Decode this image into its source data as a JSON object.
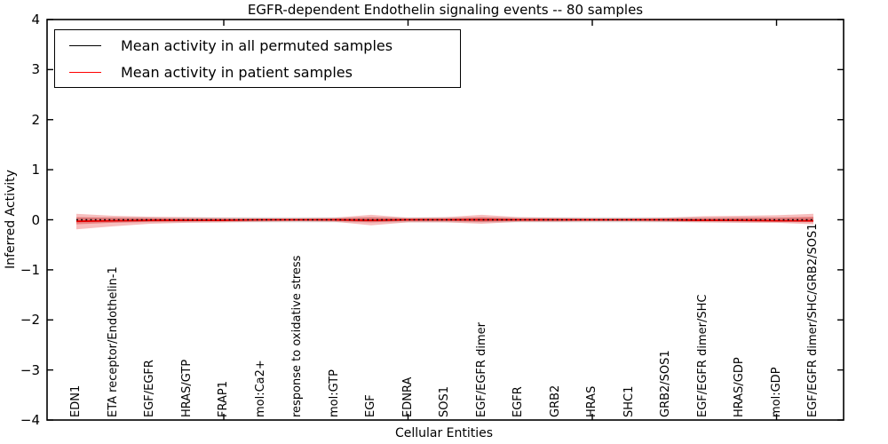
{
  "title": "EGFR-dependent Endothelin signaling events -- 80 samples",
  "legend": {
    "items": [
      {
        "label": "Mean activity in all permuted samples",
        "color": "#000000"
      },
      {
        "label": "Mean activity in patient samples",
        "color": "#ff0000"
      }
    ]
  },
  "chart_data": {
    "type": "line",
    "title": "EGFR-dependent Endothelin signaling events -- 80 samples",
    "xlabel": "Cellular Entities",
    "ylabel": "Inferred Activity",
    "ylim": [
      -4,
      4
    ],
    "yticks": [
      -4,
      -3,
      -2,
      -1,
      0,
      1,
      2,
      3,
      4
    ],
    "ytick_labels": [
      "−4",
      "−3",
      "−2",
      "−1",
      "0",
      "1",
      "2",
      "3",
      "4"
    ],
    "xtick_positions": [
      4,
      9,
      14,
      19
    ],
    "grid": false,
    "legend_position": "upper left",
    "categories": [
      "EDN1",
      "ETA receptor/Endothelin-1",
      "EGF/EGFR",
      "HRAS/GTP",
      "FRAP1",
      "mol:Ca2+",
      "response to oxidative stress",
      "mol:GTP",
      "EGF",
      "EDNRA",
      "SOS1",
      "EGF/EGFR dimer",
      "EGFR",
      "GRB2",
      "HRAS",
      "SHC1",
      "GRB2/SOS1",
      "EGF/EGFR dimer/SHC",
      "HRAS/GDP",
      "mol:GDP",
      "EGF/EGFR dimer/SHC/GRB2/SOS1"
    ],
    "series": [
      {
        "name": "Mean activity in all permuted samples",
        "color": "#000000",
        "style": "dashed",
        "values": [
          0,
          0,
          0,
          0,
          0,
          0,
          0,
          0,
          0,
          0,
          0,
          0,
          0,
          0,
          0,
          0,
          0,
          0,
          0,
          0,
          0
        ]
      },
      {
        "name": "Mean activity in patient samples",
        "color": "#e60000",
        "style": "solid",
        "values": [
          -0.03,
          -0.02,
          -0.01,
          -0.01,
          -0.01,
          0,
          0,
          0,
          -0.01,
          0,
          0,
          0,
          0,
          0,
          0,
          0,
          0,
          -0.01,
          -0.01,
          -0.02,
          -0.02
        ]
      }
    ],
    "bands": [
      {
        "name": "permuted-std-band",
        "color": "rgba(0,0,0,0.12)",
        "upper": [
          0.05,
          0.05,
          0.05,
          0.05,
          0.05,
          0.05,
          0.05,
          0.05,
          0.05,
          0.05,
          0.05,
          0.05,
          0.05,
          0.05,
          0.05,
          0.05,
          0.05,
          0.05,
          0.05,
          0.05,
          0.05
        ],
        "lower": [
          -0.05,
          -0.05,
          -0.05,
          -0.05,
          -0.05,
          -0.05,
          -0.05,
          -0.05,
          -0.05,
          -0.05,
          -0.05,
          -0.05,
          -0.05,
          -0.05,
          -0.05,
          -0.05,
          -0.05,
          -0.05,
          -0.05,
          -0.05,
          -0.05
        ]
      },
      {
        "name": "patient-std-outer-band",
        "color": "rgba(230,40,40,0.30)",
        "upper": [
          0.12,
          0.08,
          0.06,
          0.05,
          0.04,
          0.03,
          0.03,
          0.04,
          0.1,
          0.04,
          0.05,
          0.1,
          0.05,
          0.04,
          0.03,
          0.03,
          0.04,
          0.07,
          0.08,
          0.09,
          0.12
        ],
        "lower": [
          -0.19,
          -0.13,
          -0.08,
          -0.06,
          -0.05,
          -0.04,
          -0.03,
          -0.04,
          -0.11,
          -0.05,
          -0.05,
          -0.08,
          -0.04,
          -0.04,
          -0.03,
          -0.03,
          -0.04,
          -0.05,
          -0.06,
          -0.06,
          -0.09
        ]
      },
      {
        "name": "patient-std-inner-band",
        "color": "rgba(220,30,30,0.35)",
        "upper": [
          0.05,
          0.04,
          0.03,
          0.02,
          0.02,
          0.015,
          0.015,
          0.02,
          0.05,
          0.02,
          0.02,
          0.05,
          0.02,
          0.02,
          0.015,
          0.015,
          0.02,
          0.03,
          0.04,
          0.04,
          0.06
        ],
        "lower": [
          -0.09,
          -0.06,
          -0.04,
          -0.03,
          -0.02,
          -0.02,
          -0.015,
          -0.02,
          -0.05,
          -0.02,
          -0.02,
          -0.04,
          -0.02,
          -0.02,
          -0.015,
          -0.015,
          -0.02,
          -0.025,
          -0.03,
          -0.03,
          -0.045
        ]
      }
    ]
  }
}
